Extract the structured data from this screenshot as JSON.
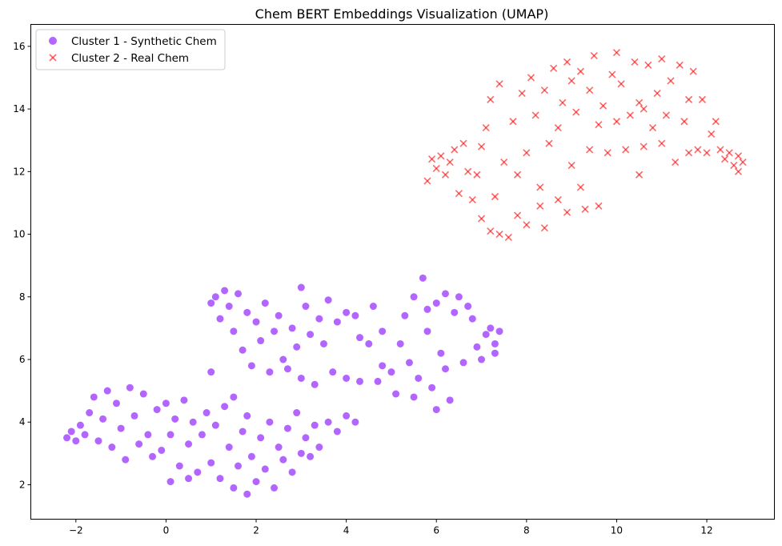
{
  "chart_data": {
    "type": "scatter",
    "title": "Chem BERT Embeddings Visualization (UMAP)",
    "xlabel": "",
    "ylabel": "",
    "xlim": [
      -3.0,
      13.5
    ],
    "ylim": [
      0.9,
      16.7
    ],
    "xticks": [
      -2,
      0,
      2,
      4,
      6,
      8,
      10,
      12
    ],
    "yticks": [
      2,
      4,
      6,
      8,
      10,
      12,
      14,
      16
    ],
    "grid": false,
    "legend_position": "top-left",
    "series": [
      {
        "name": "Cluster 1 - Synthetic Chem",
        "marker": "circle",
        "color": "#8000ff",
        "alpha": 0.6,
        "points": [
          [
            -2.2,
            3.5
          ],
          [
            -2.1,
            3.7
          ],
          [
            -2.0,
            3.4
          ],
          [
            -1.9,
            3.9
          ],
          [
            -1.8,
            3.6
          ],
          [
            -1.7,
            4.3
          ],
          [
            -1.6,
            4.8
          ],
          [
            -1.5,
            3.4
          ],
          [
            -1.4,
            4.1
          ],
          [
            -1.3,
            5.0
          ],
          [
            -1.2,
            3.2
          ],
          [
            -1.1,
            4.6
          ],
          [
            -1.0,
            3.8
          ],
          [
            -0.9,
            2.8
          ],
          [
            -0.8,
            5.1
          ],
          [
            -0.7,
            4.2
          ],
          [
            -0.6,
            3.3
          ],
          [
            -0.5,
            4.9
          ],
          [
            -0.4,
            3.6
          ],
          [
            -0.3,
            2.9
          ],
          [
            -0.2,
            4.4
          ],
          [
            -0.1,
            3.1
          ],
          [
            0.0,
            4.6
          ],
          [
            0.1,
            2.1
          ],
          [
            0.1,
            3.6
          ],
          [
            0.2,
            4.1
          ],
          [
            0.3,
            2.6
          ],
          [
            0.4,
            4.7
          ],
          [
            0.5,
            3.3
          ],
          [
            0.5,
            2.2
          ],
          [
            0.6,
            4.0
          ],
          [
            0.7,
            2.4
          ],
          [
            0.8,
            3.6
          ],
          [
            0.9,
            4.3
          ],
          [
            1.0,
            2.7
          ],
          [
            1.0,
            5.6
          ],
          [
            1.1,
            3.9
          ],
          [
            1.2,
            2.2
          ],
          [
            1.3,
            4.5
          ],
          [
            1.4,
            3.2
          ],
          [
            1.5,
            1.9
          ],
          [
            1.5,
            4.8
          ],
          [
            1.6,
            2.6
          ],
          [
            1.7,
            3.7
          ],
          [
            1.8,
            1.7
          ],
          [
            1.8,
            4.2
          ],
          [
            1.9,
            2.9
          ],
          [
            2.0,
            2.1
          ],
          [
            2.1,
            3.5
          ],
          [
            2.2,
            2.5
          ],
          [
            2.3,
            4.0
          ],
          [
            2.4,
            1.9
          ],
          [
            2.5,
            3.2
          ],
          [
            2.6,
            2.8
          ],
          [
            2.7,
            3.8
          ],
          [
            2.8,
            2.4
          ],
          [
            2.9,
            4.3
          ],
          [
            3.0,
            3.0
          ],
          [
            3.1,
            3.5
          ],
          [
            3.2,
            2.9
          ],
          [
            3.3,
            3.9
          ],
          [
            3.4,
            3.2
          ],
          [
            3.6,
            4.0
          ],
          [
            3.8,
            3.7
          ],
          [
            4.0,
            4.2
          ],
          [
            4.2,
            4.0
          ],
          [
            1.0,
            7.8
          ],
          [
            1.1,
            8.0
          ],
          [
            1.2,
            7.3
          ],
          [
            1.3,
            8.2
          ],
          [
            1.4,
            7.7
          ],
          [
            1.5,
            6.9
          ],
          [
            1.6,
            8.1
          ],
          [
            1.7,
            6.3
          ],
          [
            1.8,
            7.5
          ],
          [
            1.9,
            5.8
          ],
          [
            2.0,
            7.2
          ],
          [
            2.1,
            6.6
          ],
          [
            2.2,
            7.8
          ],
          [
            2.3,
            5.6
          ],
          [
            2.4,
            6.9
          ],
          [
            2.5,
            7.4
          ],
          [
            2.6,
            6.0
          ],
          [
            2.7,
            5.7
          ],
          [
            2.8,
            7.0
          ],
          [
            2.9,
            6.4
          ],
          [
            3.0,
            8.3
          ],
          [
            3.0,
            5.4
          ],
          [
            3.1,
            7.7
          ],
          [
            3.2,
            6.8
          ],
          [
            3.3,
            5.2
          ],
          [
            3.4,
            7.3
          ],
          [
            3.5,
            6.5
          ],
          [
            3.6,
            7.9
          ],
          [
            3.7,
            5.6
          ],
          [
            3.8,
            7.2
          ],
          [
            4.0,
            7.5
          ],
          [
            4.2,
            7.4
          ],
          [
            4.3,
            6.7
          ],
          [
            4.5,
            6.5
          ],
          [
            4.6,
            7.7
          ],
          [
            4.8,
            6.9
          ],
          [
            4.0,
            5.4
          ],
          [
            4.3,
            5.3
          ],
          [
            4.7,
            5.3
          ],
          [
            4.8,
            5.8
          ],
          [
            5.0,
            5.6
          ],
          [
            5.1,
            4.9
          ],
          [
            5.2,
            6.5
          ],
          [
            5.3,
            7.4
          ],
          [
            5.4,
            5.9
          ],
          [
            5.5,
            8.0
          ],
          [
            5.6,
            5.4
          ],
          [
            5.7,
            8.6
          ],
          [
            5.8,
            6.9
          ],
          [
            5.9,
            5.1
          ],
          [
            6.0,
            4.4
          ],
          [
            6.0,
            7.8
          ],
          [
            6.1,
            6.2
          ],
          [
            6.2,
            5.7
          ],
          [
            6.3,
            4.7
          ],
          [
            6.4,
            7.5
          ],
          [
            6.5,
            8.0
          ],
          [
            6.6,
            5.9
          ],
          [
            6.7,
            7.7
          ],
          [
            6.8,
            7.3
          ],
          [
            6.9,
            6.4
          ],
          [
            7.0,
            6.0
          ],
          [
            7.1,
            6.8
          ],
          [
            7.2,
            7.0
          ],
          [
            7.3,
            6.5
          ],
          [
            7.4,
            6.9
          ],
          [
            5.5,
            4.8
          ],
          [
            5.8,
            7.6
          ],
          [
            6.2,
            8.1
          ],
          [
            7.3,
            6.2
          ]
        ]
      },
      {
        "name": "Cluster 2 - Real Chem",
        "marker": "x",
        "color": "#ff0000",
        "alpha": 0.6,
        "points": [
          [
            5.8,
            11.7
          ],
          [
            5.9,
            12.4
          ],
          [
            6.0,
            12.1
          ],
          [
            6.2,
            11.9
          ],
          [
            6.3,
            12.3
          ],
          [
            6.4,
            12.7
          ],
          [
            6.5,
            11.3
          ],
          [
            6.6,
            12.9
          ],
          [
            6.7,
            12.0
          ],
          [
            6.8,
            11.1
          ],
          [
            6.9,
            11.9
          ],
          [
            7.0,
            12.8
          ],
          [
            7.0,
            10.5
          ],
          [
            7.1,
            13.4
          ],
          [
            7.2,
            14.3
          ],
          [
            7.2,
            10.1
          ],
          [
            7.3,
            11.2
          ],
          [
            7.4,
            14.8
          ],
          [
            7.4,
            10.0
          ],
          [
            7.5,
            12.3
          ],
          [
            7.6,
            9.9
          ],
          [
            7.7,
            13.6
          ],
          [
            7.8,
            11.9
          ],
          [
            7.8,
            10.6
          ],
          [
            7.9,
            14.5
          ],
          [
            8.0,
            12.6
          ],
          [
            8.0,
            10.3
          ],
          [
            8.1,
            15.0
          ],
          [
            8.2,
            13.8
          ],
          [
            8.3,
            11.5
          ],
          [
            8.4,
            10.2
          ],
          [
            8.4,
            14.6
          ],
          [
            8.5,
            12.9
          ],
          [
            8.6,
            15.3
          ],
          [
            8.7,
            11.1
          ],
          [
            8.7,
            13.4
          ],
          [
            8.8,
            14.2
          ],
          [
            8.9,
            10.7
          ],
          [
            8.9,
            15.5
          ],
          [
            9.0,
            12.2
          ],
          [
            9.1,
            13.9
          ],
          [
            9.2,
            11.5
          ],
          [
            9.2,
            15.2
          ],
          [
            9.3,
            10.8
          ],
          [
            9.4,
            14.6
          ],
          [
            9.4,
            12.7
          ],
          [
            9.5,
            15.7
          ],
          [
            9.6,
            13.5
          ],
          [
            9.6,
            10.9
          ],
          [
            9.7,
            14.1
          ],
          [
            9.8,
            12.6
          ],
          [
            9.9,
            15.1
          ],
          [
            10.0,
            13.6
          ],
          [
            10.0,
            15.8
          ],
          [
            10.1,
            14.8
          ],
          [
            10.2,
            12.7
          ],
          [
            10.3,
            13.8
          ],
          [
            10.4,
            15.5
          ],
          [
            10.5,
            11.9
          ],
          [
            10.5,
            14.2
          ],
          [
            10.6,
            12.8
          ],
          [
            10.7,
            15.4
          ],
          [
            10.8,
            13.4
          ],
          [
            10.9,
            14.5
          ],
          [
            11.0,
            12.9
          ],
          [
            11.0,
            15.6
          ],
          [
            11.1,
            13.8
          ],
          [
            11.2,
            14.9
          ],
          [
            11.3,
            12.3
          ],
          [
            11.4,
            15.4
          ],
          [
            11.5,
            13.6
          ],
          [
            11.6,
            14.3
          ],
          [
            11.6,
            12.6
          ],
          [
            11.7,
            15.2
          ],
          [
            11.8,
            12.7
          ],
          [
            11.9,
            14.3
          ],
          [
            12.0,
            12.6
          ],
          [
            12.1,
            13.2
          ],
          [
            12.2,
            13.6
          ],
          [
            12.3,
            12.7
          ],
          [
            12.4,
            12.4
          ],
          [
            12.5,
            12.6
          ],
          [
            12.6,
            12.2
          ],
          [
            12.7,
            12.0
          ],
          [
            12.7,
            12.5
          ],
          [
            12.8,
            12.3
          ],
          [
            6.1,
            12.5
          ],
          [
            8.3,
            10.9
          ],
          [
            9.0,
            14.9
          ],
          [
            10.6,
            14.0
          ]
        ]
      }
    ]
  }
}
